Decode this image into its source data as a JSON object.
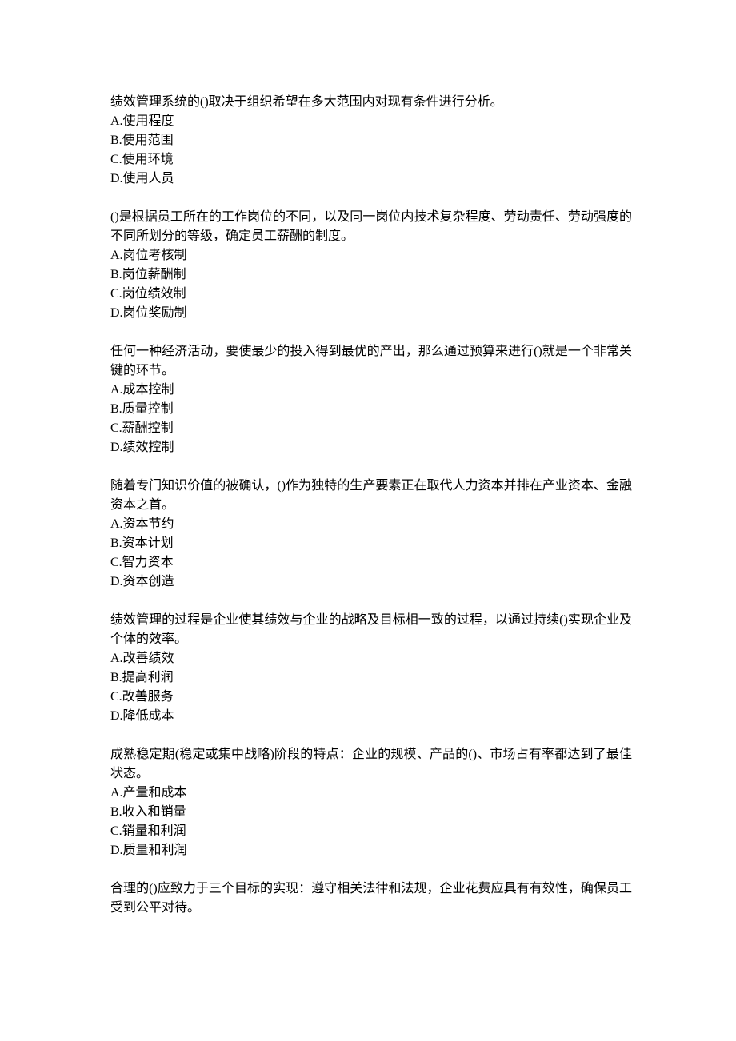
{
  "questions": [
    {
      "text": "绩效管理系统的()取决于组织希望在多大范围内对现有条件进行分析。",
      "options": [
        "A.使用程度",
        "B.使用范围",
        "C.使用环境",
        "D.使用人员"
      ]
    },
    {
      "text": "()是根据员工所在的工作岗位的不同，以及同一岗位内技术复杂程度、劳动责任、劳动强度的不同所划分的等级，确定员工薪酬的制度。",
      "options": [
        "A.岗位考核制",
        "B.岗位薪酬制",
        "C.岗位绩效制",
        "D.岗位奖励制"
      ]
    },
    {
      "text": "任何一种经济活动，要使最少的投入得到最优的产出，那么通过预算来进行()就是一个非常关键的环节。",
      "options": [
        "A.成本控制",
        "B.质量控制",
        "C.薪酬控制",
        "D.绩效控制"
      ]
    },
    {
      "text": "随着专门知识价值的被确认，()作为独特的生产要素正在取代人力资本并排在产业资本、金融资本之首。",
      "options": [
        "A.资本节约",
        "B.资本计划",
        "C.智力资本",
        "D.资本创造"
      ]
    },
    {
      "text": "绩效管理的过程是企业使其绩效与企业的战略及目标相一致的过程，以通过持续()实现企业及个体的效率。",
      "options": [
        "A.改善绩效",
        "B.提高利润",
        "C.改善服务",
        "D.降低成本"
      ]
    },
    {
      "text": "成熟稳定期(稳定或集中战略)阶段的特点：企业的规模、产品的()、市场占有率都达到了最佳状态。",
      "options": [
        "A.产量和成本",
        "B.收入和销量",
        "C.销量和利润",
        "D.质量和利润"
      ]
    },
    {
      "text": "合理的()应致力于三个目标的实现：遵守相关法律和法规，企业花费应具有有效性，确保员工受到公平对待。",
      "options": []
    }
  ]
}
